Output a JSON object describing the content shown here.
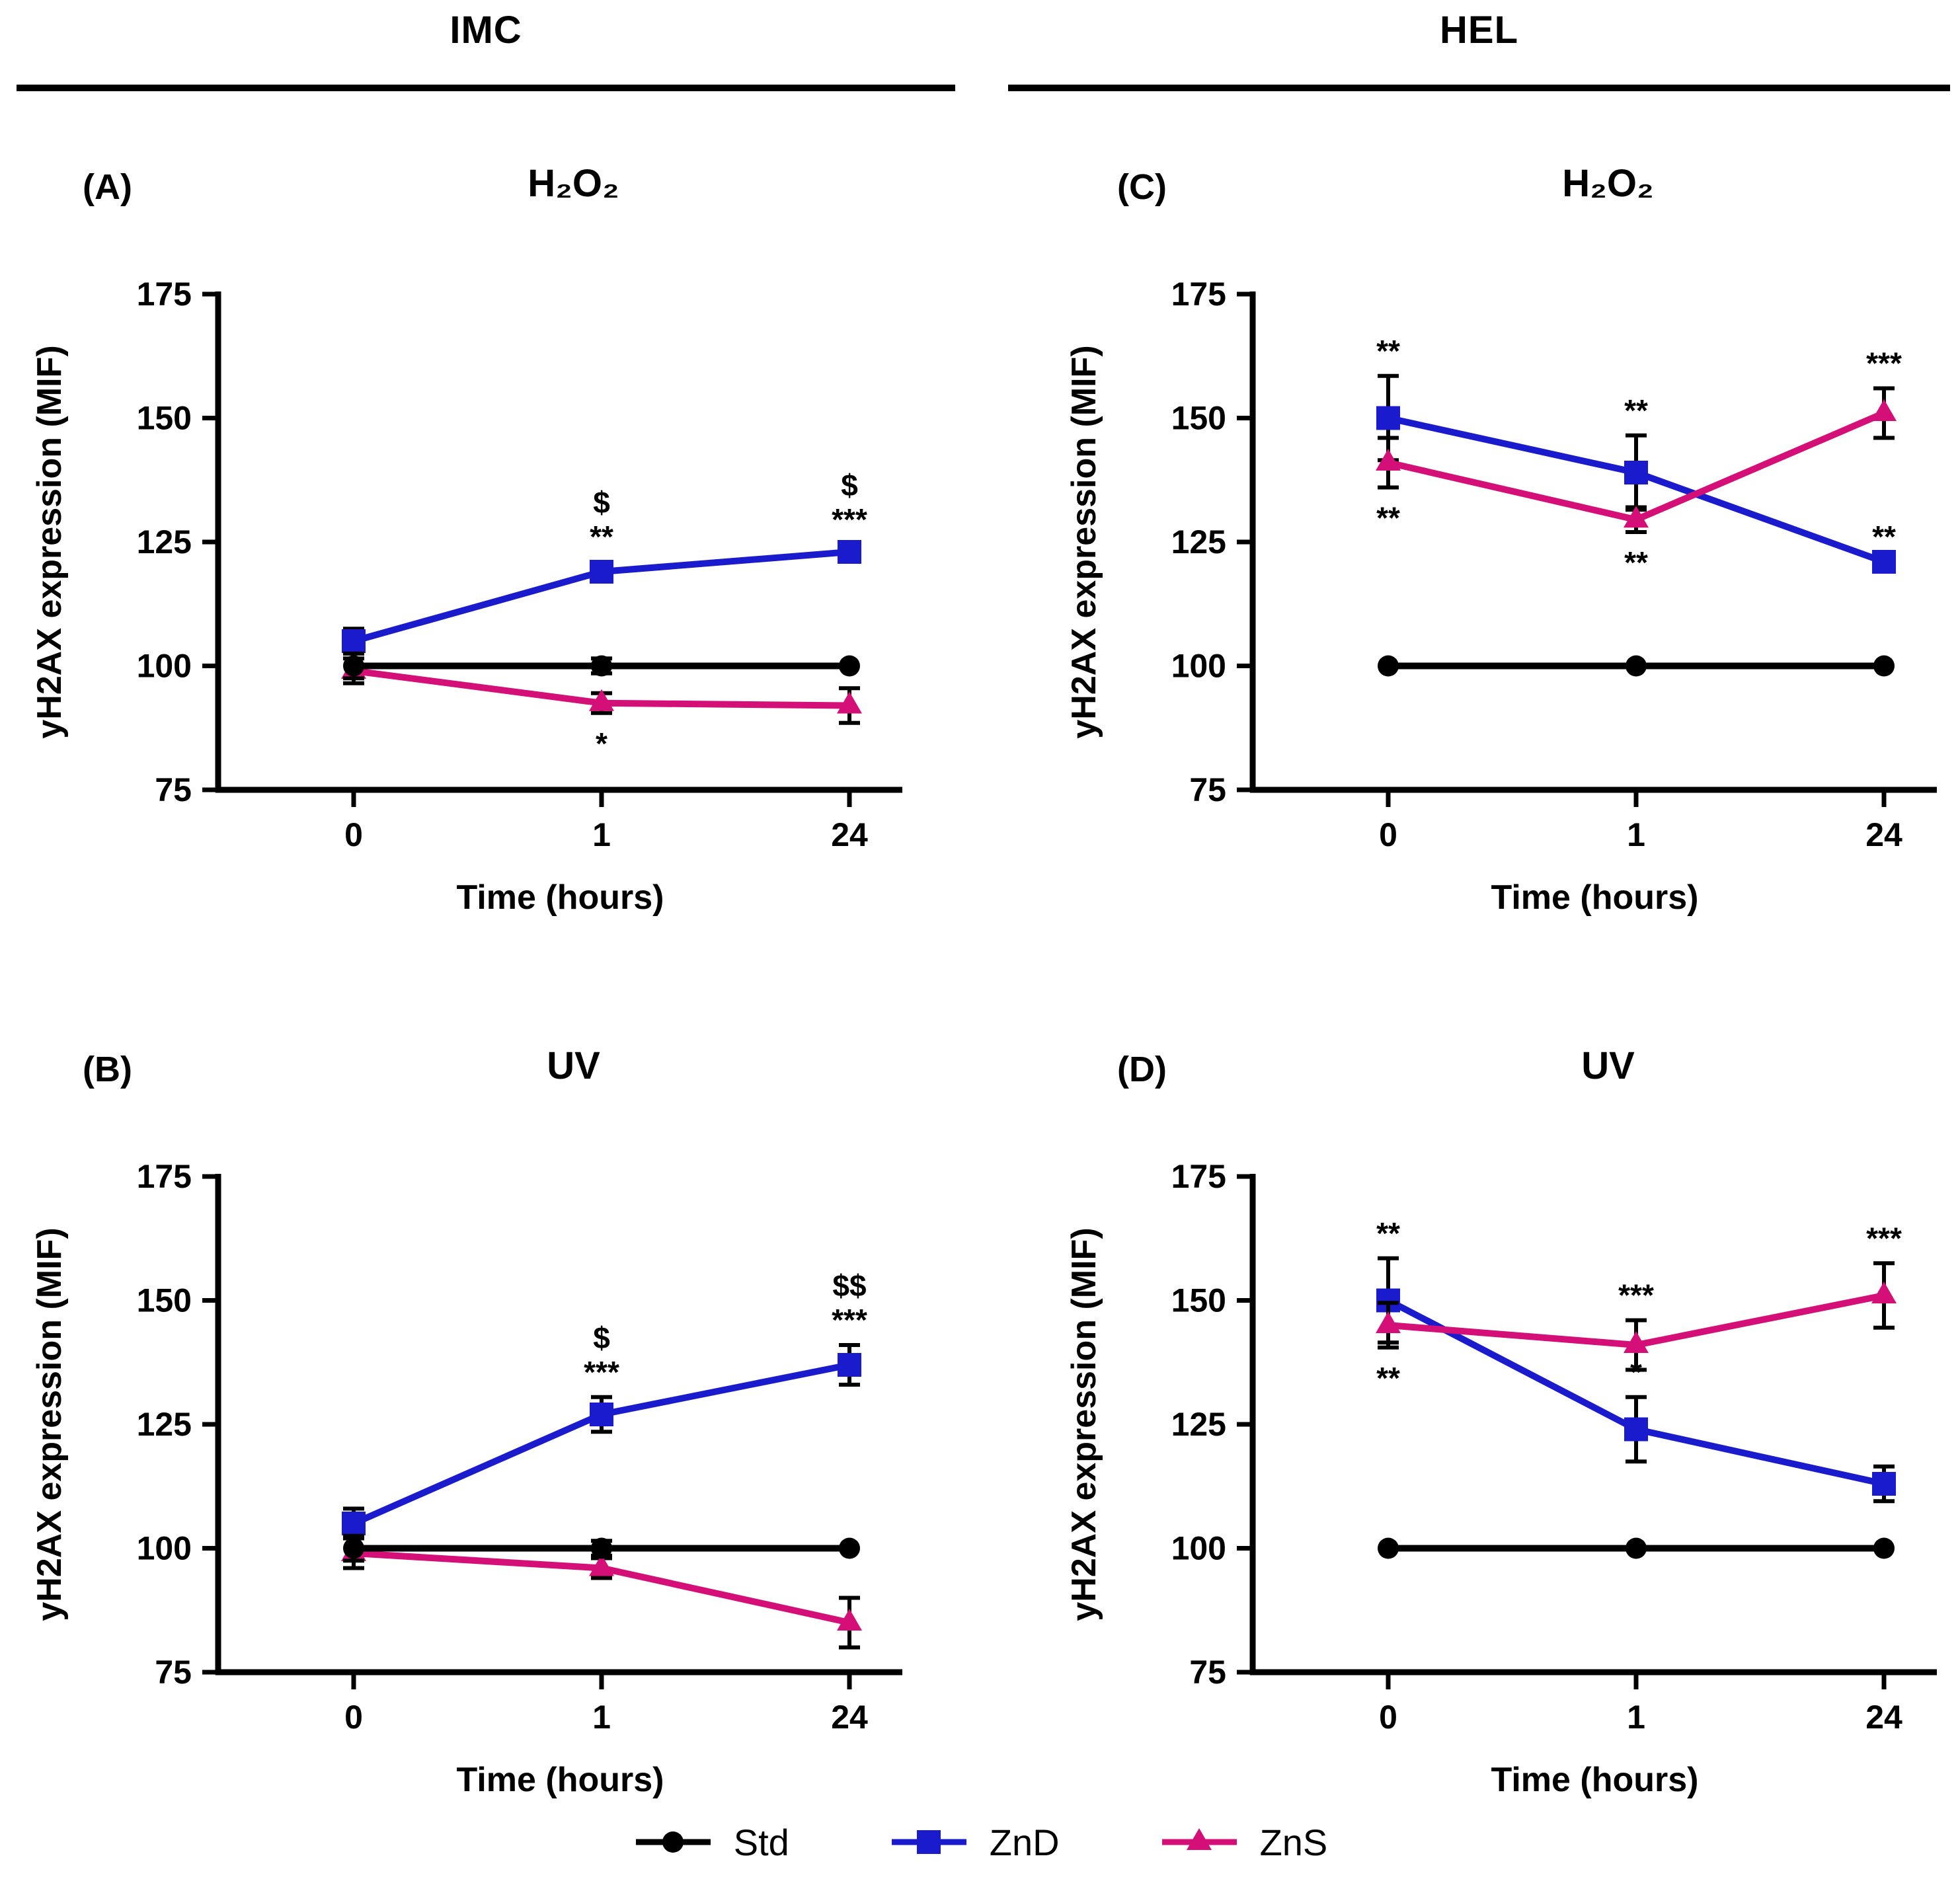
{
  "figure": {
    "column_headers": [
      {
        "label": "IMC"
      },
      {
        "label": "HEL"
      }
    ],
    "y_axis_label": "yH2AX expression (MIF)",
    "x_axis_label": "Time (hours)",
    "legend": [
      {
        "name": "Std"
      },
      {
        "name": "ZnD"
      },
      {
        "name": "ZnS"
      }
    ]
  },
  "styles": {
    "series": {
      "Std": {
        "color": "#000000",
        "marker": "circle"
      },
      "ZnD": {
        "color": "#1B1BCE",
        "marker": "square"
      },
      "ZnS": {
        "color": "#D50F78",
        "marker": "triangle"
      }
    },
    "error_bar_color": "#000000"
  },
  "chart_data": [
    {
      "id": "A",
      "panel_label": "(A)",
      "column": "IMC",
      "title": "H₂O₂",
      "type": "line",
      "x_categories": [
        "0",
        "1",
        "24"
      ],
      "x_label": "Time (hours)",
      "y_label": "yH2AX expression (MIF)",
      "ylim": [
        75,
        175
      ],
      "yticks": [
        75,
        100,
        125,
        150,
        175
      ],
      "grid": false,
      "series": [
        {
          "name": "Std",
          "values": [
            100,
            100,
            100
          ],
          "errors": [
            2.5,
            1.5,
            0
          ]
        },
        {
          "name": "ZnD",
          "values": [
            105,
            119,
            123
          ],
          "errors": [
            2.5,
            2,
            1.5
          ]
        },
        {
          "name": "ZnS",
          "values": [
            99,
            92.5,
            92
          ],
          "errors": [
            2.5,
            2,
            3.5
          ]
        }
      ],
      "annotations": [
        {
          "xi": 1,
          "series": "ZnD",
          "side": "above",
          "lines": [
            "$",
            "**"
          ]
        },
        {
          "xi": 2,
          "series": "ZnD",
          "side": "above",
          "lines": [
            "$",
            "***"
          ]
        },
        {
          "xi": 1,
          "series": "ZnS",
          "side": "below",
          "lines": [
            "*"
          ]
        }
      ]
    },
    {
      "id": "B",
      "panel_label": "(B)",
      "column": "IMC",
      "title": "UV",
      "type": "line",
      "x_categories": [
        "0",
        "1",
        "24"
      ],
      "x_label": "Time (hours)",
      "y_label": "yH2AX expression (MIF)",
      "ylim": [
        75,
        175
      ],
      "yticks": [
        75,
        100,
        125,
        150,
        175
      ],
      "grid": false,
      "series": [
        {
          "name": "Std",
          "values": [
            100,
            100,
            100
          ],
          "errors": [
            2.5,
            1.5,
            0
          ]
        },
        {
          "name": "ZnD",
          "values": [
            105,
            127,
            137
          ],
          "errors": [
            3,
            3.5,
            4
          ]
        },
        {
          "name": "ZnS",
          "values": [
            99,
            96,
            85
          ],
          "errors": [
            3,
            2,
            5
          ]
        }
      ],
      "annotations": [
        {
          "xi": 1,
          "series": "ZnD",
          "side": "above",
          "lines": [
            "$",
            "***"
          ]
        },
        {
          "xi": 2,
          "series": "ZnD",
          "side": "above",
          "lines": [
            "$$",
            "***"
          ]
        }
      ]
    },
    {
      "id": "C",
      "panel_label": "(C)",
      "column": "HEL",
      "title": "H₂O₂",
      "type": "line",
      "x_categories": [
        "0",
        "1",
        "24"
      ],
      "x_label": "Time (hours)",
      "y_label": "yH2AX expression (MIF)",
      "ylim": [
        75,
        175
      ],
      "yticks": [
        75,
        100,
        125,
        150,
        175
      ],
      "grid": false,
      "series": [
        {
          "name": "Std",
          "values": [
            100,
            100,
            100
          ],
          "errors": [
            0,
            0,
            0
          ]
        },
        {
          "name": "ZnD",
          "values": [
            150,
            139,
            121
          ],
          "errors": [
            8.5,
            7.5,
            0
          ]
        },
        {
          "name": "ZnS",
          "values": [
            141,
            129.5,
            151
          ],
          "errors": [
            5,
            2.5,
            5
          ]
        }
      ],
      "annotations": [
        {
          "xi": 0,
          "series": "ZnD",
          "side": "above",
          "lines": [
            "**"
          ]
        },
        {
          "xi": 0,
          "series": "ZnS",
          "side": "below",
          "lines": [
            "**"
          ]
        },
        {
          "xi": 1,
          "series": "ZnD",
          "side": "above",
          "lines": [
            "**"
          ]
        },
        {
          "xi": 1,
          "series": "ZnS",
          "side": "below",
          "lines": [
            "**"
          ]
        },
        {
          "xi": 2,
          "series": "ZnS",
          "side": "above",
          "lines": [
            "***"
          ]
        },
        {
          "xi": 2,
          "series": "ZnD",
          "side": "above",
          "lines": [
            "**"
          ]
        }
      ]
    },
    {
      "id": "D",
      "panel_label": "(D)",
      "column": "HEL",
      "title": "UV",
      "type": "line",
      "x_categories": [
        "0",
        "1",
        "24"
      ],
      "x_label": "Time (hours)",
      "y_label": "yH2AX expression (MIF)",
      "ylim": [
        75,
        175
      ],
      "yticks": [
        75,
        100,
        125,
        150,
        175
      ],
      "grid": false,
      "series": [
        {
          "name": "Std",
          "values": [
            100,
            100,
            100
          ],
          "errors": [
            0,
            0,
            0
          ]
        },
        {
          "name": "ZnD",
          "values": [
            150,
            124,
            113
          ],
          "errors": [
            8.5,
            6.5,
            3.5
          ]
        },
        {
          "name": "ZnS",
          "values": [
            145,
            141,
            151
          ],
          "errors": [
            4.5,
            5,
            6.5
          ]
        }
      ],
      "annotations": [
        {
          "xi": 0,
          "series": "ZnD",
          "side": "above",
          "lines": [
            "**"
          ]
        },
        {
          "xi": 0,
          "series": "ZnS",
          "side": "below",
          "lines": [
            "**"
          ]
        },
        {
          "xi": 1,
          "series": "ZnS",
          "side": "above",
          "lines": [
            "***"
          ]
        },
        {
          "xi": 1,
          "series": "ZnD",
          "side": "above",
          "lines": [
            "*"
          ]
        },
        {
          "xi": 2,
          "series": "ZnS",
          "side": "above",
          "lines": [
            "***"
          ]
        }
      ]
    }
  ]
}
